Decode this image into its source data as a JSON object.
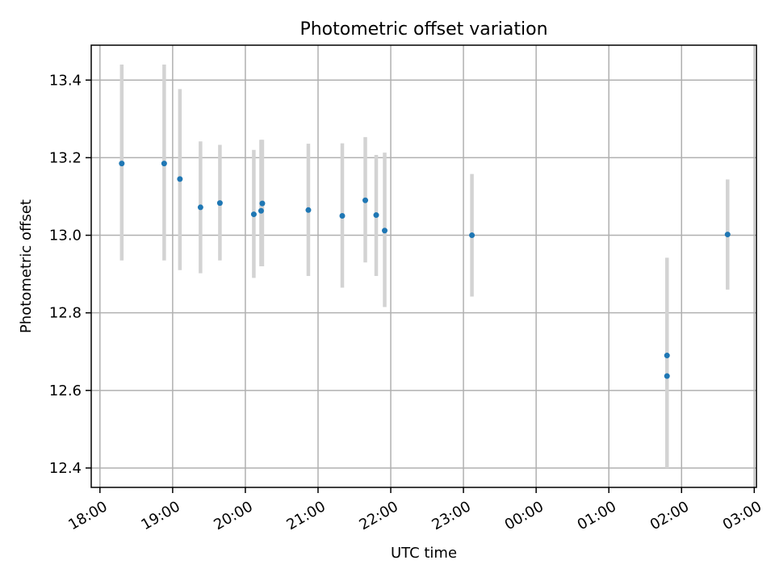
{
  "chart_data": {
    "type": "scatter",
    "title": "Photometric offset variation",
    "xlabel": "UTC time",
    "ylabel": "Photometric offset",
    "x_ticks": [
      "18:00",
      "19:00",
      "20:00",
      "21:00",
      "22:00",
      "23:00",
      "00:00",
      "01:00",
      "02:00",
      "03:00"
    ],
    "y_ticks": [
      "12.4",
      "12.6",
      "12.8",
      "13.0",
      "13.2",
      "13.4"
    ],
    "xlim_hours": [
      17.88,
      27.03
    ],
    "ylim": [
      12.35,
      13.49
    ],
    "grid": true,
    "point_color": "#1f77b4",
    "errorbar_color": "#d3d3d3",
    "points": [
      {
        "time": "18:18",
        "y": 13.185,
        "ylo": 12.935,
        "yhi": 13.44
      },
      {
        "time": "18:53",
        "y": 13.185,
        "ylo": 12.935,
        "yhi": 13.44
      },
      {
        "time": "19:06",
        "y": 13.145,
        "ylo": 12.91,
        "yhi": 13.377
      },
      {
        "time": "19:23",
        "y": 13.072,
        "ylo": 12.902,
        "yhi": 13.242
      },
      {
        "time": "19:39",
        "y": 13.083,
        "ylo": 12.935,
        "yhi": 13.233
      },
      {
        "time": "20:07",
        "y": 13.054,
        "ylo": 12.89,
        "yhi": 13.22
      },
      {
        "time": "20:13",
        "y": 13.063,
        "ylo": 12.92,
        "yhi": 13.246
      },
      {
        "time": "20:14",
        "y": 13.082,
        "ylo": 12.92,
        "yhi": 13.246
      },
      {
        "time": "20:52",
        "y": 13.065,
        "ylo": 12.895,
        "yhi": 13.236
      },
      {
        "time": "21:20",
        "y": 13.05,
        "ylo": 12.865,
        "yhi": 13.237
      },
      {
        "time": "21:39",
        "y": 13.09,
        "ylo": 12.93,
        "yhi": 13.253
      },
      {
        "time": "21:48",
        "y": 13.052,
        "ylo": 12.895,
        "yhi": 13.207
      },
      {
        "time": "21:55",
        "y": 13.012,
        "ylo": 12.815,
        "yhi": 13.213
      },
      {
        "time": "23:07",
        "y": 13.0,
        "ylo": 12.842,
        "yhi": 13.158
      },
      {
        "time": "01:48",
        "y": 12.69,
        "ylo": 12.442,
        "yhi": 12.942
      },
      {
        "time": "01:48",
        "y": 12.637,
        "ylo": 12.4,
        "yhi": 12.78
      },
      {
        "time": "02:38",
        "y": 13.002,
        "ylo": 12.86,
        "yhi": 13.144
      }
    ]
  }
}
